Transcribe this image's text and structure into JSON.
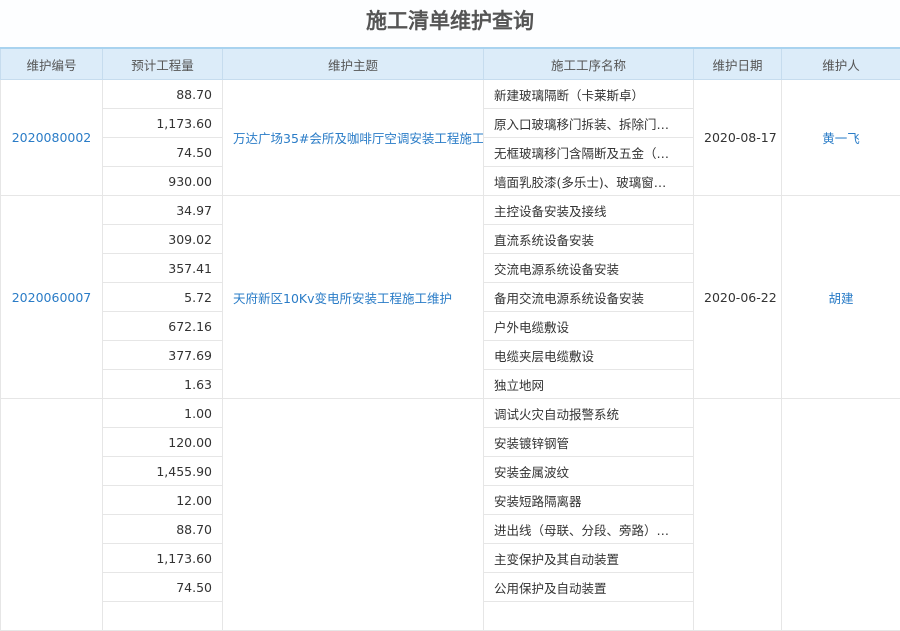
{
  "title": "施工清单维护查询",
  "columns": [
    "维护编号",
    "预计工程量",
    "维护主题",
    "施工工序名称",
    "维护日期",
    "维护人"
  ],
  "groups": [
    {
      "id": "2020080002",
      "topic": "万达广场35#会所及咖啡厅空调安装工程施工",
      "date": "2020-08-17",
      "person": "黄一飞",
      "items": [
        [
          "88.70",
          "新建玻璃隔断（卡莱斯卓）"
        ],
        [
          "1,173.60",
          "原入口玻璃移门拆装、拆除门…"
        ],
        [
          "74.50",
          "无框玻璃移门含隔断及五金（…"
        ],
        [
          "930.00",
          "墙面乳胶漆(多乐士)、玻璃窗…"
        ]
      ]
    },
    {
      "id": "2020060007",
      "topic": "天府新区10Kv变电所安装工程施工维护",
      "date": "2020-06-22",
      "person": "胡建",
      "items": [
        [
          "34.97",
          "主控设备安装及接线"
        ],
        [
          "309.02",
          "直流系统设备安装"
        ],
        [
          "357.41",
          "交流电源系统设备安装"
        ],
        [
          "5.72",
          "备用交流电源系统设备安装"
        ],
        [
          "672.16",
          "户外电缆敷设"
        ],
        [
          "377.69",
          "电缆夹层电缆敷设"
        ],
        [
          "1.63",
          "独立地网"
        ]
      ]
    },
    {
      "id": "",
      "topic": "",
      "date": "",
      "person": "",
      "items": [
        [
          "1.00",
          "调试火灾自动报警系统"
        ],
        [
          "120.00",
          "安装镀锌钢管"
        ],
        [
          "1,455.90",
          "安装金属波纹"
        ],
        [
          "12.00",
          "安装短路隔离器"
        ],
        [
          "88.70",
          "进出线（母联、分段、旁路）…"
        ],
        [
          "1,173.60",
          "主变保护及其自动装置"
        ],
        [
          "74.50",
          "公用保护及自动装置"
        ],
        [
          "",
          ""
        ]
      ]
    }
  ]
}
